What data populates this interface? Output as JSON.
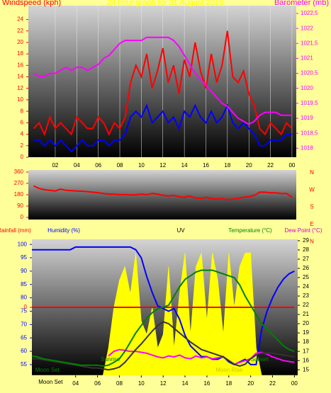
{
  "chart_data": [
    {
      "type": "line",
      "title": "24 hour graph for 31 August 2016",
      "ylabel": "Windspeed (kph)",
      "y2label": "Barometer (mb)",
      "x": [
        0,
        0.5,
        1,
        1.5,
        2,
        2.5,
        3,
        3.5,
        4,
        4.5,
        5,
        5.5,
        6,
        6.5,
        7,
        7.5,
        8,
        8.5,
        9,
        9.5,
        10,
        10.5,
        11,
        11.5,
        12,
        12.5,
        13,
        13.5,
        14,
        14.5,
        15,
        15.5,
        16,
        16.5,
        17,
        17.5,
        18,
        18.5,
        19,
        19.5,
        20,
        20.5,
        21,
        21.5,
        22,
        22.5,
        23,
        23.5,
        24
      ],
      "xlim": [
        -0.5,
        24.4
      ],
      "xticks": [
        {
          "value": 2,
          "label": "02"
        },
        {
          "value": 4,
          "label": "04"
        },
        {
          "value": 6,
          "label": "06"
        },
        {
          "value": 8,
          "label": "08"
        },
        {
          "value": 10,
          "label": "10"
        },
        12,
        14,
        16,
        18,
        20,
        22,
        {
          "value": 24,
          "label": "00"
        }
      ],
      "ylim": [
        0,
        26.4
      ],
      "yticks": [
        0,
        2,
        4,
        6,
        8,
        10,
        12,
        14,
        16,
        18,
        20,
        22,
        24
      ],
      "y2lim": [
        1017.7,
        1022.76
      ],
      "y2ticks": [
        1018,
        {
          "value": 1018.5,
          "label": "1018,5"
        },
        1019,
        {
          "value": 1019.5,
          "label": "1019,5"
        },
        1020,
        {
          "value": 1020.5,
          "label": "1020,5"
        },
        1021,
        {
          "value": 1021.5,
          "label": "1021,5"
        },
        1022,
        {
          "value": 1022.5,
          "label": "1022,5"
        }
      ],
      "grid": true,
      "series": [
        {
          "color": "#ff0000",
          "values": [
            5,
            6,
            4,
            7,
            5,
            6,
            5,
            4,
            7,
            6,
            5,
            5,
            7,
            6,
            4,
            6,
            5,
            7,
            13,
            16,
            14,
            18,
            12,
            15,
            19,
            13,
            16,
            11,
            17,
            14,
            20,
            15,
            12,
            18,
            13,
            16,
            22,
            14,
            13,
            15,
            11,
            9,
            5,
            4,
            6,
            5,
            4,
            6,
            5
          ]
        },
        {
          "color": "#0000ff",
          "values": [
            3,
            3,
            2,
            3,
            2,
            3,
            2,
            1,
            2,
            3,
            2,
            2,
            3,
            3,
            2,
            3,
            3,
            4,
            7,
            8,
            7,
            9,
            6,
            7,
            8,
            6,
            7,
            5,
            8,
            7,
            9,
            7,
            6,
            8,
            6,
            7,
            9,
            6,
            5,
            6,
            5,
            4,
            2,
            2,
            3,
            3,
            3,
            4,
            4
          ]
        },
        {
          "color": "#ff00ff",
          "axis": "y2",
          "values": [
            1020.5,
            1020.4,
            1020.4,
            1020.5,
            1020.5,
            1020.6,
            1020.7,
            1020.6,
            1020.7,
            1020.7,
            1020.6,
            1020.7,
            1020.8,
            1021.0,
            1021.1,
            1021.3,
            1021.5,
            1021.6,
            1021.6,
            1021.6,
            1021.6,
            1021.7,
            1021.7,
            1021.7,
            1021.7,
            1021.7,
            1021.6,
            1021.4,
            1021.1,
            1020.8,
            1020.5,
            1020.3,
            1020.1,
            1019.9,
            1019.7,
            1019.5,
            1019.4,
            1019.2,
            1019.0,
            1018.9,
            1018.8,
            1018.9,
            1019.1,
            1019.2,
            1019.2,
            1019.2,
            1019.1,
            1019.1,
            1019.1
          ]
        }
      ]
    },
    {
      "type": "line",
      "x": [
        0,
        0.5,
        1,
        1.5,
        2,
        2.5,
        3,
        3.5,
        4,
        4.5,
        5,
        5.5,
        6,
        6.5,
        7,
        7.5,
        8,
        8.5,
        9,
        9.5,
        10,
        10.5,
        11,
        11.5,
        12,
        12.5,
        13,
        13.5,
        14,
        14.5,
        15,
        15.5,
        16,
        16.5,
        17,
        17.5,
        18,
        18.5,
        19,
        19.5,
        20,
        20.5,
        21,
        21.5,
        22,
        22.5,
        23,
        23.5,
        24
      ],
      "xlim": [
        -0.5,
        24.4
      ],
      "ylim": [
        -16.9,
        376.9
      ],
      "yticks": [
        0,
        90,
        180,
        270,
        360
      ],
      "compass": [
        "N",
        "W",
        "S",
        "E",
        "N"
      ],
      "series": [
        {
          "color": "#ff0000",
          "values": [
            250,
            230,
            220,
            215,
            210,
            225,
            215,
            212,
            210,
            208,
            205,
            200,
            195,
            190,
            185,
            185,
            180,
            182,
            178,
            180,
            185,
            180,
            190,
            185,
            175,
            170,
            175,
            165,
            160,
            170,
            155,
            150,
            160,
            150,
            145,
            150,
            140,
            145,
            150,
            160,
            165,
            175,
            200,
            200,
            195,
            195,
            190,
            190,
            160
          ]
        }
      ]
    },
    {
      "type": "line",
      "x": [
        0,
        0.5,
        1,
        1.5,
        2,
        2.5,
        3,
        3.5,
        4,
        4.5,
        5,
        5.5,
        6,
        6.5,
        7,
        7.5,
        8,
        8.5,
        9,
        9.5,
        10,
        10.5,
        11,
        11.5,
        12,
        12.5,
        13,
        13.5,
        14,
        14.5,
        15,
        15.5,
        16,
        16.5,
        17,
        17.5,
        18,
        18.5,
        19,
        19.5,
        20,
        20.5,
        21,
        21.5,
        22,
        22.5,
        23,
        23.5,
        24
      ],
      "xlim": [
        0,
        24.3
      ],
      "xticks": [
        {
          "value": 4,
          "label": "04"
        },
        {
          "value": 6,
          "label": "06"
        },
        {
          "value": 8,
          "label": "08"
        },
        {
          "value": 10,
          "label": "10"
        },
        12,
        14,
        16,
        18,
        20,
        22,
        {
          "value": 24,
          "label": "00"
        }
      ],
      "ylim": [
        51,
        101.9
      ],
      "yticks": [
        55,
        60,
        65,
        70,
        75,
        80,
        85,
        90,
        95,
        100
      ],
      "y2lim": [
        14.4,
        29.15
      ],
      "y2ticks": [
        15,
        16,
        17,
        18,
        19,
        20,
        21,
        22,
        23,
        24,
        25,
        26,
        27,
        28,
        29
      ],
      "y3lim": [
        0,
        10
      ],
      "y4lim": [
        -1,
        1
      ],
      "y4ticks": [
        0
      ],
      "annotations": [
        {
          "text": "Moon Set",
          "x": 0.3,
          "color": "#008000"
        },
        {
          "text": "Sunrise",
          "x": 6.3,
          "color": "#008000"
        },
        {
          "text": "Moon Rise",
          "x": 16.8,
          "color": "#c8c800"
        },
        {
          "text": "Sunset",
          "x": 20.0,
          "color": "#008000"
        },
        {
          "text": "Moon Set",
          "x": 0.6,
          "color": "#000000",
          "position": "axis"
        }
      ],
      "series": [
        {
          "name": "UV",
          "color": "#ffff00",
          "axis": "y3",
          "values": [
            0,
            0,
            0,
            0,
            0,
            0,
            0,
            0,
            0,
            0,
            0,
            0,
            0,
            0,
            2,
            5,
            7,
            8,
            6,
            9,
            4,
            3,
            5,
            2,
            3,
            8,
            2,
            6,
            9,
            3,
            8,
            9,
            4,
            9,
            7,
            3,
            9,
            5,
            8,
            9,
            9,
            2,
            0,
            0,
            0,
            0,
            0,
            0,
            0
          ]
        },
        {
          "name": "Rainfall (mm)",
          "color": "#ff0000",
          "axis": "y4",
          "values": [
            0,
            0,
            0,
            0,
            0,
            0,
            0,
            0,
            0,
            0,
            0,
            0,
            0,
            0,
            0,
            0,
            0,
            0,
            0,
            0,
            0,
            0,
            0,
            0,
            0,
            0,
            0,
            0,
            0,
            0,
            0,
            0,
            0,
            0,
            0,
            0,
            0,
            0,
            0,
            0,
            0,
            0,
            0,
            0,
            0,
            0,
            0,
            0,
            0
          ]
        },
        {
          "name": "Humidity (%)",
          "color": "#0000ff",
          "values": [
            98,
            98,
            98,
            98,
            98,
            98,
            98,
            98,
            99,
            99,
            99,
            99,
            99,
            99,
            99,
            99,
            99,
            99,
            99,
            98,
            95,
            88,
            82,
            77,
            76,
            75,
            76,
            72,
            66,
            62,
            60,
            58,
            58,
            57,
            57,
            58,
            56,
            55,
            56,
            57,
            55,
            55,
            68,
            75,
            80,
            84,
            87,
            89,
            90
          ]
        },
        {
          "color": "#ff00ff",
          "axis": "y2",
          "values": [
            null,
            null,
            null,
            null,
            null,
            null,
            null,
            null,
            null,
            null,
            null,
            null,
            null,
            null,
            16.5,
            17.0,
            17.2,
            17.1,
            17.0,
            17.0,
            16.9,
            16.8,
            16.6,
            16.4,
            16.3,
            16.5,
            16.4,
            16.6,
            16.3,
            16.2,
            16.5,
            16.3,
            16.4,
            16.2,
            16.3,
            16.4,
            16.0,
            15.6,
            15.8,
            16.0,
            16.2,
            16.8,
            16.9,
            16.7,
            16.4,
            16.2,
            16.0,
            15.9,
            15.8
          ]
        },
        {
          "name": "Dew Point (°C)",
          "color": "#333333",
          "axis": "y2",
          "values": [
            16.2,
            16.2,
            16.1,
            16.0,
            15.9,
            15.8,
            15.7,
            15.6,
            15.5,
            15.4,
            15.3,
            15.2,
            15.2,
            15.1,
            15.0,
            15.1,
            15.3,
            15.8,
            16.5,
            17.2,
            17.8,
            18.5,
            19.2,
            19.8,
            20.2,
            20.0,
            19.5,
            19.0,
            18.5,
            18.0,
            17.6,
            17.2,
            17.0,
            16.8,
            16.6,
            16.4,
            16.0,
            15.6,
            15.4,
            15.6,
            16.2,
            16.6,
            16.8,
            16.8,
            16.8,
            16.7,
            16.6,
            16.5,
            16.4
          ]
        },
        {
          "name": "Temperature (°C)",
          "color": "#008000",
          "axis": "y2",
          "values": [
            16.5,
            16.4,
            16.2,
            16.1,
            16.0,
            15.9,
            15.8,
            15.7,
            15.6,
            15.5,
            15.5,
            15.5,
            15.5,
            15.4,
            15.5,
            15.8,
            16.2,
            17.0,
            18.0,
            19.0,
            19.8,
            20.6,
            21.2,
            21.6,
            21.8,
            22.0,
            23.0,
            24.0,
            24.8,
            25.2,
            25.6,
            25.8,
            25.8,
            25.8,
            25.6,
            25.4,
            25.2,
            25.0,
            24.2,
            23.0,
            22.0,
            21.0,
            20.0,
            19.4,
            18.8,
            18.2,
            17.6,
            17.2,
            17.0
          ]
        }
      ]
    }
  ]
}
